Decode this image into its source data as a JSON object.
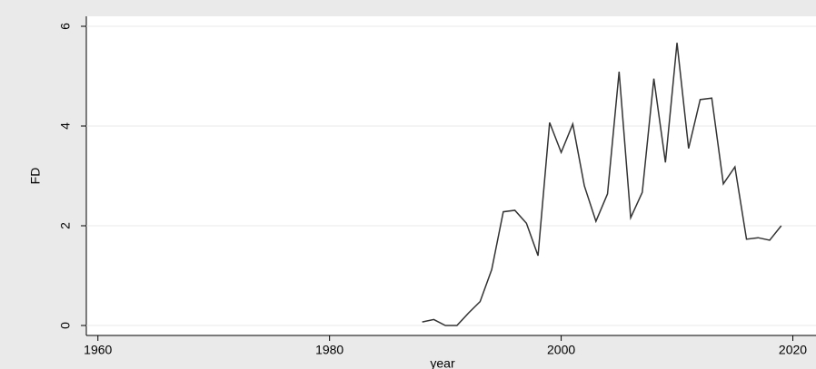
{
  "chart_data": {
    "type": "line",
    "ylabel": "FD",
    "xlabel": "year",
    "x": [
      1988,
      1989,
      1990,
      1991,
      1992,
      1993,
      1994,
      1995,
      1996,
      1997,
      1998,
      1999,
      2000,
      2001,
      2002,
      2003,
      2004,
      2005,
      2006,
      2007,
      2008,
      2009,
      2010,
      2011,
      2012,
      2013,
      2014,
      2015,
      2016,
      2017,
      2018,
      2019
    ],
    "values": [
      0.07,
      0.12,
      0.0,
      0.0,
      0.25,
      0.48,
      1.12,
      2.28,
      2.31,
      2.05,
      1.4,
      4.07,
      3.47,
      4.04,
      2.8,
      2.09,
      2.64,
      5.09,
      2.16,
      2.67,
      4.95,
      3.27,
      5.67,
      3.55,
      4.53,
      4.56,
      2.84,
      3.18,
      1.73,
      1.76,
      1.71,
      2.0
    ],
    "color": "#333333",
    "xlim": [
      1959,
      2022
    ],
    "xticks": [
      1960,
      1980,
      2000,
      2020
    ],
    "ylim": [
      -0.2,
      6.2
    ],
    "yticks": [
      0,
      2,
      4,
      6
    ],
    "grid": true
  }
}
